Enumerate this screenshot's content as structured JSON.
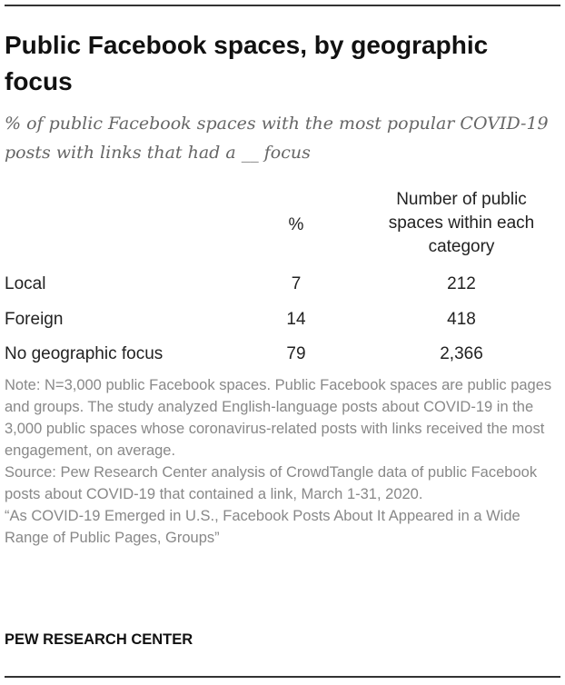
{
  "header": {
    "title": "Public Facebook spaces, by geographic focus",
    "subtitle": "% of public Facebook spaces with the most popular COVID-19 posts with links that had a __ focus"
  },
  "table": {
    "columns": {
      "percent": "%",
      "count_line1": "Number of public",
      "count_line2": "spaces within each",
      "count_line3": "category"
    },
    "rows": [
      {
        "label": "Local",
        "percent": "7",
        "count": "212"
      },
      {
        "label": "Foreign",
        "percent": "14",
        "count": "418"
      },
      {
        "label": "No geographic focus",
        "percent": "79",
        "count": "2,366"
      }
    ]
  },
  "footer": {
    "note": "Note: N=3,000 public Facebook spaces. Public Facebook spaces are public pages and groups. The study analyzed English-language posts about COVID-19 in the 3,000 public spaces whose coronavirus-related posts with links received the most engagement, on average.",
    "source": "Source: Pew Research Center analysis of CrowdTangle data of public Facebook posts about COVID-19 that contained a link, March 1-31, 2020.",
    "report": "“As COVID-19 Emerged in U.S., Facebook Posts About It Appeared in a Wide Range of Public Pages, Groups”",
    "brand": "PEW RESEARCH CENTER"
  },
  "colors": {
    "title": "#111111",
    "subtitle": "#666666",
    "body_text": "#222222",
    "notes_text": "#888888",
    "rule": "#333333"
  }
}
